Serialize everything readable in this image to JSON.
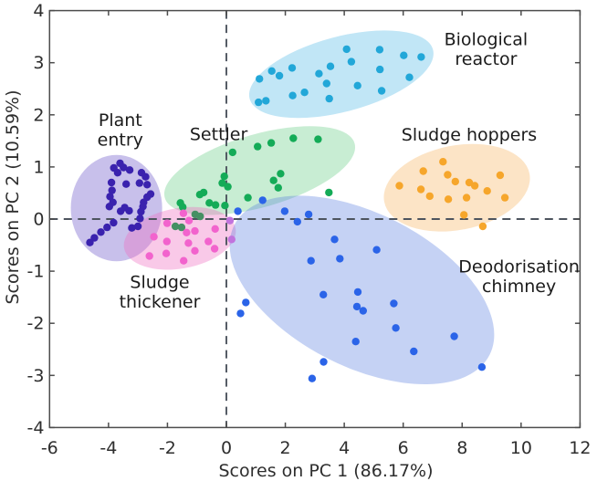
{
  "chart_data": {
    "type": "scatter",
    "title": "",
    "xlabel": "Scores on PC 1 (86.17%)",
    "ylabel": "Scores on PC 2 (10.59%)",
    "xlim": [
      -6,
      12
    ],
    "ylim": [
      -4,
      4
    ],
    "xticks": [
      -6,
      -4,
      -2,
      0,
      2,
      4,
      6,
      8,
      10,
      12
    ],
    "yticks": [
      -4,
      -3,
      -2,
      -1,
      0,
      1,
      2,
      3,
      4
    ],
    "grid": false,
    "legend": "none (direct cluster annotations)",
    "reference_lines": {
      "x": 0,
      "y": 0,
      "style": "dashed",
      "color": "#4d545e"
    },
    "spine_color": "#4d4d4d",
    "series": [
      {
        "name": "Plant entry",
        "label_lines": [
          "Plant",
          "entry"
        ],
        "label_xy": [
          -3.6,
          1.9
        ],
        "color": "#3a22ae",
        "ellipse": {
          "cx": -3.73,
          "cy": 0.21,
          "rx": 1.55,
          "ry": 1.02,
          "angle": 0,
          "fill": "#7b68cf",
          "opacity": 0.42
        },
        "points": [
          [
            -3.61,
            1.07
          ],
          [
            -3.82,
            0.98
          ],
          [
            -3.49,
            0.99
          ],
          [
            -3.28,
            0.94
          ],
          [
            -3.69,
            0.89
          ],
          [
            -2.88,
            0.89
          ],
          [
            -2.74,
            0.81
          ],
          [
            -3.9,
            0.7
          ],
          [
            -3.4,
            0.67
          ],
          [
            -2.95,
            0.69
          ],
          [
            -2.69,
            0.66
          ],
          [
            -3.88,
            0.55
          ],
          [
            -2.57,
            0.48
          ],
          [
            -3.95,
            0.43
          ],
          [
            -2.69,
            0.42
          ],
          [
            -3.85,
            0.32
          ],
          [
            -2.81,
            0.32
          ],
          [
            -3.97,
            0.24
          ],
          [
            -2.83,
            0.24
          ],
          [
            -3.45,
            0.22
          ],
          [
            -3.3,
            0.16
          ],
          [
            -3.59,
            0.15
          ],
          [
            -2.9,
            0.14
          ],
          [
            -2.93,
            0.01
          ],
          [
            -3.83,
            -0.07
          ],
          [
            -3.0,
            -0.14
          ],
          [
            -4.05,
            -0.16
          ],
          [
            -3.21,
            -0.17
          ],
          [
            -4.26,
            -0.25
          ],
          [
            -4.48,
            -0.36
          ],
          [
            -4.63,
            -0.45
          ]
        ]
      },
      {
        "name": "Settler",
        "label_lines": [
          "Settler"
        ],
        "label_xy": [
          -0.26,
          1.63
        ],
        "color": "#14ab57",
        "ellipse": {
          "cx": 1.13,
          "cy": 0.93,
          "rx": 3.35,
          "ry": 0.7,
          "angle": -16,
          "fill": "#59c878",
          "opacity": 0.33
        },
        "points": [
          [
            0.21,
            1.28
          ],
          [
            1.06,
            1.39
          ],
          [
            1.52,
            1.46
          ],
          [
            2.27,
            1.55
          ],
          [
            3.11,
            1.53
          ],
          [
            1.84,
            0.87
          ],
          [
            1.6,
            0.74
          ],
          [
            1.76,
            0.6
          ],
          [
            -0.07,
            0.82
          ],
          [
            -0.14,
            0.69
          ],
          [
            0.05,
            0.62
          ],
          [
            0.73,
            0.41
          ],
          [
            3.48,
            0.51
          ],
          [
            -0.9,
            0.47
          ],
          [
            -0.77,
            0.51
          ],
          [
            -1.56,
            0.31
          ],
          [
            -1.48,
            0.23
          ],
          [
            -0.58,
            0.31
          ],
          [
            -0.37,
            0.27
          ],
          [
            -0.05,
            0.26
          ]
        ],
        "tinted_points": {
          "color": "#459063",
          "points": [
            [
              -1.73,
              -0.14
            ],
            [
              -1.52,
              -0.16
            ],
            [
              -1.06,
              0.09
            ],
            [
              -0.89,
              0.05
            ]
          ]
        }
      },
      {
        "name": "Sludge thickener",
        "label_lines": [
          "Sludge",
          "thickener"
        ],
        "label_xy": [
          -2.26,
          -1.21
        ],
        "color": "#f263cd",
        "ellipse": {
          "cx": -1.58,
          "cy": -0.37,
          "rx": 1.92,
          "ry": 0.58,
          "angle": -10,
          "fill": "#f06cc0",
          "opacity": 0.37
        },
        "points": [
          [
            -2.01,
            -0.08
          ],
          [
            -1.46,
            0.11
          ],
          [
            -1.27,
            -0.03
          ],
          [
            -2.46,
            -0.34
          ],
          [
            -2.61,
            -0.71
          ],
          [
            -2.04,
            -0.66
          ],
          [
            -2.02,
            -0.43
          ],
          [
            -1.45,
            -0.8
          ],
          [
            -1.35,
            -0.26
          ],
          [
            -1.29,
            -0.46
          ],
          [
            -1.07,
            -0.61
          ],
          [
            -0.61,
            -0.43
          ],
          [
            -0.4,
            -0.57
          ],
          [
            -1.07,
            -0.23
          ],
          [
            -0.38,
            -0.19
          ]
        ],
        "tinted_points": {
          "color": "#c173dd",
          "points": [
            [
              0.12,
              -0.03
            ],
            [
              0.18,
              -0.39
            ]
          ]
        }
      },
      {
        "name": "Biological reactor",
        "label_lines": [
          "Biological",
          "reactor"
        ],
        "label_xy": [
          8.81,
          3.45
        ],
        "color": "#22a7d8",
        "ellipse": {
          "cx": 3.9,
          "cy": 2.78,
          "rx": 3.22,
          "ry": 0.72,
          "angle": -15,
          "fill": "#5cbce8",
          "opacity": 0.38
        },
        "points": [
          [
            4.08,
            3.26
          ],
          [
            5.2,
            3.25
          ],
          [
            6.02,
            3.14
          ],
          [
            6.61,
            3.11
          ],
          [
            4.24,
            3.02
          ],
          [
            1.54,
            2.84
          ],
          [
            1.8,
            2.75
          ],
          [
            2.23,
            2.9
          ],
          [
            3.14,
            2.79
          ],
          [
            3.53,
            2.93
          ],
          [
            5.21,
            2.87
          ],
          [
            6.21,
            2.72
          ],
          [
            1.12,
            2.69
          ],
          [
            3.4,
            2.6
          ],
          [
            4.45,
            2.56
          ],
          [
            5.27,
            2.46
          ],
          [
            2.25,
            2.37
          ],
          [
            2.65,
            2.43
          ],
          [
            3.49,
            2.31
          ],
          [
            1.09,
            2.24
          ],
          [
            1.34,
            2.27
          ]
        ]
      },
      {
        "name": "Sludge hoppers",
        "label_lines": [
          "Sludge hoppers"
        ],
        "label_xy": [
          8.24,
          1.62
        ],
        "color": "#f6a62b",
        "ellipse": {
          "cx": 7.82,
          "cy": 0.6,
          "rx": 2.51,
          "ry": 0.81,
          "angle": -11,
          "fill": "#f7b35c",
          "opacity": 0.35
        },
        "points": [
          [
            7.35,
            1.1
          ],
          [
            6.68,
            0.92
          ],
          [
            7.51,
            0.85
          ],
          [
            7.77,
            0.72
          ],
          [
            8.24,
            0.7
          ],
          [
            8.43,
            0.64
          ],
          [
            9.29,
            0.84
          ],
          [
            5.87,
            0.64
          ],
          [
            6.6,
            0.57
          ],
          [
            6.9,
            0.44
          ],
          [
            8.85,
            0.54
          ],
          [
            9.45,
            0.41
          ],
          [
            7.53,
            0.38
          ],
          [
            8.15,
            0.41
          ],
          [
            8.06,
            0.08
          ],
          [
            8.7,
            -0.14
          ]
        ]
      },
      {
        "name": "Deodorisation chimney",
        "label_lines": [
          "Deodorisation",
          "chimney"
        ],
        "label_xy": [
          9.93,
          -0.91
        ],
        "color": "#2b64e8",
        "ellipse": {
          "cx": 4.6,
          "cy": -1.36,
          "rx": 4.86,
          "ry": 1.47,
          "angle": 27,
          "fill": "#5a7ee0",
          "opacity": 0.35
        },
        "points": [
          [
            0.39,
            0.15
          ],
          [
            1.23,
            0.36
          ],
          [
            1.98,
            0.15
          ],
          [
            2.41,
            -0.05
          ],
          [
            2.79,
            0.09
          ],
          [
            3.67,
            -0.39
          ],
          [
            5.1,
            -0.59
          ],
          [
            2.87,
            -0.8
          ],
          [
            3.85,
            -0.76
          ],
          [
            3.29,
            -1.45
          ],
          [
            4.46,
            -1.4
          ],
          [
            4.43,
            -1.68
          ],
          [
            4.64,
            -1.76
          ],
          [
            5.68,
            -1.62
          ],
          [
            0.66,
            -1.6
          ],
          [
            0.48,
            -1.81
          ],
          [
            5.75,
            -2.09
          ],
          [
            7.73,
            -2.25
          ],
          [
            4.39,
            -2.35
          ],
          [
            6.36,
            -2.54
          ],
          [
            3.3,
            -2.74
          ],
          [
            8.67,
            -2.84
          ],
          [
            2.91,
            -3.06
          ]
        ]
      }
    ]
  }
}
